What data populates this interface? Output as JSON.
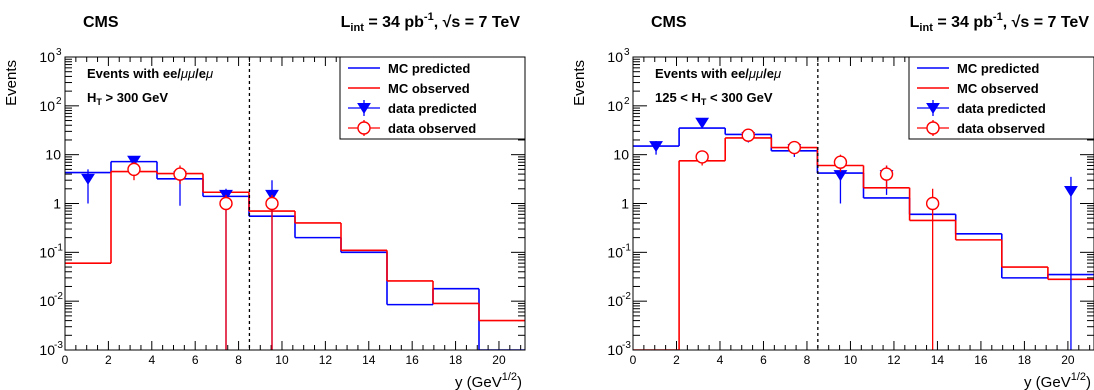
{
  "chart_data": [
    {
      "type": "histogram",
      "experiment_label": "CMS",
      "lumi_label": {
        "main": "L",
        "sub": "int",
        "mid": " = 34 pb",
        "sup": "-1",
        "tail": ", √s = 7 TeV"
      },
      "ylabel": "Events",
      "xlabel": {
        "main": "y   (GeV",
        "sup": "1/2",
        "tail": ")"
      },
      "xlim": [
        0,
        21.2
      ],
      "ylim": [
        0.001,
        1000
      ],
      "yscale": "log",
      "xticks": [
        0,
        2,
        4,
        6,
        8,
        10,
        12,
        14,
        16,
        18,
        20
      ],
      "xtick_labels": [
        "0",
        "2",
        "4",
        "6",
        "8",
        "10",
        "12",
        "14",
        "16",
        "18",
        "20"
      ],
      "yticks": [
        0.001,
        0.01,
        0.1,
        1,
        10,
        100,
        1000
      ],
      "ytick_labels": [
        {
          "main": "10",
          "sup": "-3"
        },
        {
          "main": "10",
          "sup": "-2"
        },
        {
          "main": "10",
          "sup": "-1"
        },
        {
          "main": "1",
          "sup": ""
        },
        {
          "main": "10",
          "sup": ""
        },
        {
          "main": "10",
          "sup": "2"
        },
        {
          "main": "10",
          "sup": "3"
        }
      ],
      "annotation_lines": [
        {
          "parts": [
            {
              "t": "Events with ee/"
            },
            {
              "t": "μμ",
              "italic": true
            },
            {
              "t": "/e"
            },
            {
              "t": "μ",
              "italic": true
            }
          ]
        },
        {
          "parts": [
            {
              "t": "H"
            },
            {
              "t": "T",
              "sub": true
            },
            {
              "t": " > 300 GeV"
            }
          ]
        }
      ],
      "cut_line_x": 8.5,
      "legend_placement": "top-right",
      "legend": [
        {
          "label": "MC predicted",
          "style": "line",
          "color": "#0000ff"
        },
        {
          "label": "MC observed",
          "style": "line",
          "color": "#ff0000"
        },
        {
          "label": "data predicted",
          "style": "triangle",
          "color": "#0000ff"
        },
        {
          "label": "data observed",
          "style": "circle",
          "color": "#ff0000"
        }
      ],
      "bin_edges": [
        0,
        2.12,
        4.24,
        6.36,
        8.48,
        10.6,
        12.72,
        14.84,
        16.96,
        19.08,
        21.2
      ],
      "series": [
        {
          "name": "MC predicted",
          "kind": "step",
          "color": "#0000ff",
          "values": [
            4.3,
            7.2,
            3.2,
            1.4,
            0.55,
            0.2,
            0.1,
            0.0085,
            0.018,
            0.0007
          ]
        },
        {
          "name": "MC observed",
          "kind": "step",
          "color": "#ff0000",
          "values": [
            0.06,
            4.5,
            4.1,
            1.7,
            0.7,
            0.4,
            0.11,
            0.026,
            0.009,
            0.004
          ]
        },
        {
          "name": "data predicted",
          "kind": "points",
          "marker": "triangle",
          "color": "#0000ff",
          "points": [
            {
              "x": 1.06,
              "y": 3.2,
              "lo": 1.0,
              "hi": 5.0
            },
            {
              "x": 3.18,
              "y": 7.5,
              "lo": 5.0,
              "hi": 9.0
            },
            {
              "x": 5.3,
              "y": 3.6,
              "lo": 0.9,
              "hi": 5.5
            },
            {
              "x": 7.42,
              "y": 1.5,
              "lo": 0.001,
              "hi": 2.0
            },
            {
              "x": 9.54,
              "y": 1.5,
              "lo": 0.001,
              "hi": 3.0
            }
          ]
        },
        {
          "name": "data observed",
          "kind": "points",
          "marker": "circle",
          "color": "#ff0000",
          "points": [
            {
              "x": 3.18,
              "y": 5.0,
              "lo": 3.0,
              "hi": 7.0
            },
            {
              "x": 5.3,
              "y": 4.0,
              "lo": 2.5,
              "hi": 6.0
            },
            {
              "x": 7.42,
              "y": 1.0,
              "lo": 0.001,
              "hi": 1.5
            },
            {
              "x": 9.54,
              "y": 1.0,
              "lo": 0.001,
              "hi": 1.5
            }
          ]
        }
      ]
    },
    {
      "type": "histogram",
      "experiment_label": "CMS",
      "lumi_label": {
        "main": "L",
        "sub": "int",
        "mid": " = 34 pb",
        "sup": "-1",
        "tail": ", √s = 7 TeV"
      },
      "ylabel": "Events",
      "xlabel": {
        "main": "y   (GeV",
        "sup": "1/2",
        "tail": ")"
      },
      "xlim": [
        0,
        21.2
      ],
      "ylim": [
        0.001,
        1000
      ],
      "yscale": "log",
      "xticks": [
        0,
        2,
        4,
        6,
        8,
        10,
        12,
        14,
        16,
        18,
        20
      ],
      "xtick_labels": [
        "0",
        "2",
        "4",
        "6",
        "8",
        "10",
        "12",
        "14",
        "16",
        "18",
        "20"
      ],
      "yticks": [
        0.001,
        0.01,
        0.1,
        1,
        10,
        100,
        1000
      ],
      "ytick_labels": [
        {
          "main": "10",
          "sup": "-3"
        },
        {
          "main": "10",
          "sup": "-2"
        },
        {
          "main": "10",
          "sup": "-1"
        },
        {
          "main": "1",
          "sup": ""
        },
        {
          "main": "10",
          "sup": ""
        },
        {
          "main": "10",
          "sup": "2"
        },
        {
          "main": "10",
          "sup": "3"
        }
      ],
      "annotation_lines": [
        {
          "parts": [
            {
              "t": "Events with ee/"
            },
            {
              "t": "μμ",
              "italic": true
            },
            {
              "t": "/e"
            },
            {
              "t": "μ",
              "italic": true
            }
          ]
        },
        {
          "parts": [
            {
              "t": "125 < H"
            },
            {
              "t": "T",
              "sub": true
            },
            {
              "t": " < 300 GeV"
            }
          ]
        }
      ],
      "cut_line_x": 8.5,
      "legend_placement": "top-right",
      "legend": [
        {
          "label": "MC predicted",
          "style": "line",
          "color": "#0000ff"
        },
        {
          "label": "MC observed",
          "style": "line",
          "color": "#ff0000"
        },
        {
          "label": "data predicted",
          "style": "triangle",
          "color": "#0000ff"
        },
        {
          "label": "data observed",
          "style": "circle",
          "color": "#ff0000"
        }
      ],
      "bin_edges": [
        0,
        2.12,
        4.24,
        6.36,
        8.48,
        10.6,
        12.72,
        14.84,
        16.96,
        19.08,
        21.2
      ],
      "series": [
        {
          "name": "MC predicted",
          "kind": "step",
          "color": "#0000ff",
          "values": [
            15,
            35,
            26,
            12,
            4.2,
            1.3,
            0.6,
            0.24,
            0.03,
            0.035
          ]
        },
        {
          "name": "MC observed",
          "kind": "step",
          "color": "#ff0000",
          "values": [
            0.001,
            7.5,
            22,
            14,
            6,
            2.1,
            0.45,
            0.18,
            0.05,
            0.028
          ]
        },
        {
          "name": "data predicted",
          "kind": "points",
          "marker": "triangle",
          "color": "#0000ff",
          "points": [
            {
              "x": 1.06,
              "y": 15,
              "lo": 10,
              "hi": 19
            },
            {
              "x": 3.18,
              "y": 45,
              "lo": 38,
              "hi": 52
            },
            {
              "x": 5.3,
              "y": 23,
              "lo": 19,
              "hi": 27
            },
            {
              "x": 7.42,
              "y": 13,
              "lo": 9,
              "hi": 17
            },
            {
              "x": 9.54,
              "y": 3.8,
              "lo": 1.0,
              "hi": 7.0
            },
            {
              "x": 11.66,
              "y": 3.8,
              "lo": 1.5,
              "hi": 6.0
            },
            {
              "x": 20.14,
              "y": 1.8,
              "lo": 0.001,
              "hi": 3.5
            }
          ]
        },
        {
          "name": "data observed",
          "kind": "points",
          "marker": "circle",
          "color": "#ff0000",
          "points": [
            {
              "x": 3.18,
              "y": 9,
              "lo": 6,
              "hi": 12
            },
            {
              "x": 5.3,
              "y": 25,
              "lo": 20,
              "hi": 30
            },
            {
              "x": 7.42,
              "y": 14,
              "lo": 10,
              "hi": 18
            },
            {
              "x": 9.54,
              "y": 7,
              "lo": 4.5,
              "hi": 10
            },
            {
              "x": 11.66,
              "y": 4,
              "lo": 2,
              "hi": 6
            },
            {
              "x": 13.78,
              "y": 1,
              "lo": 0.001,
              "hi": 2.0
            }
          ]
        }
      ]
    }
  ]
}
